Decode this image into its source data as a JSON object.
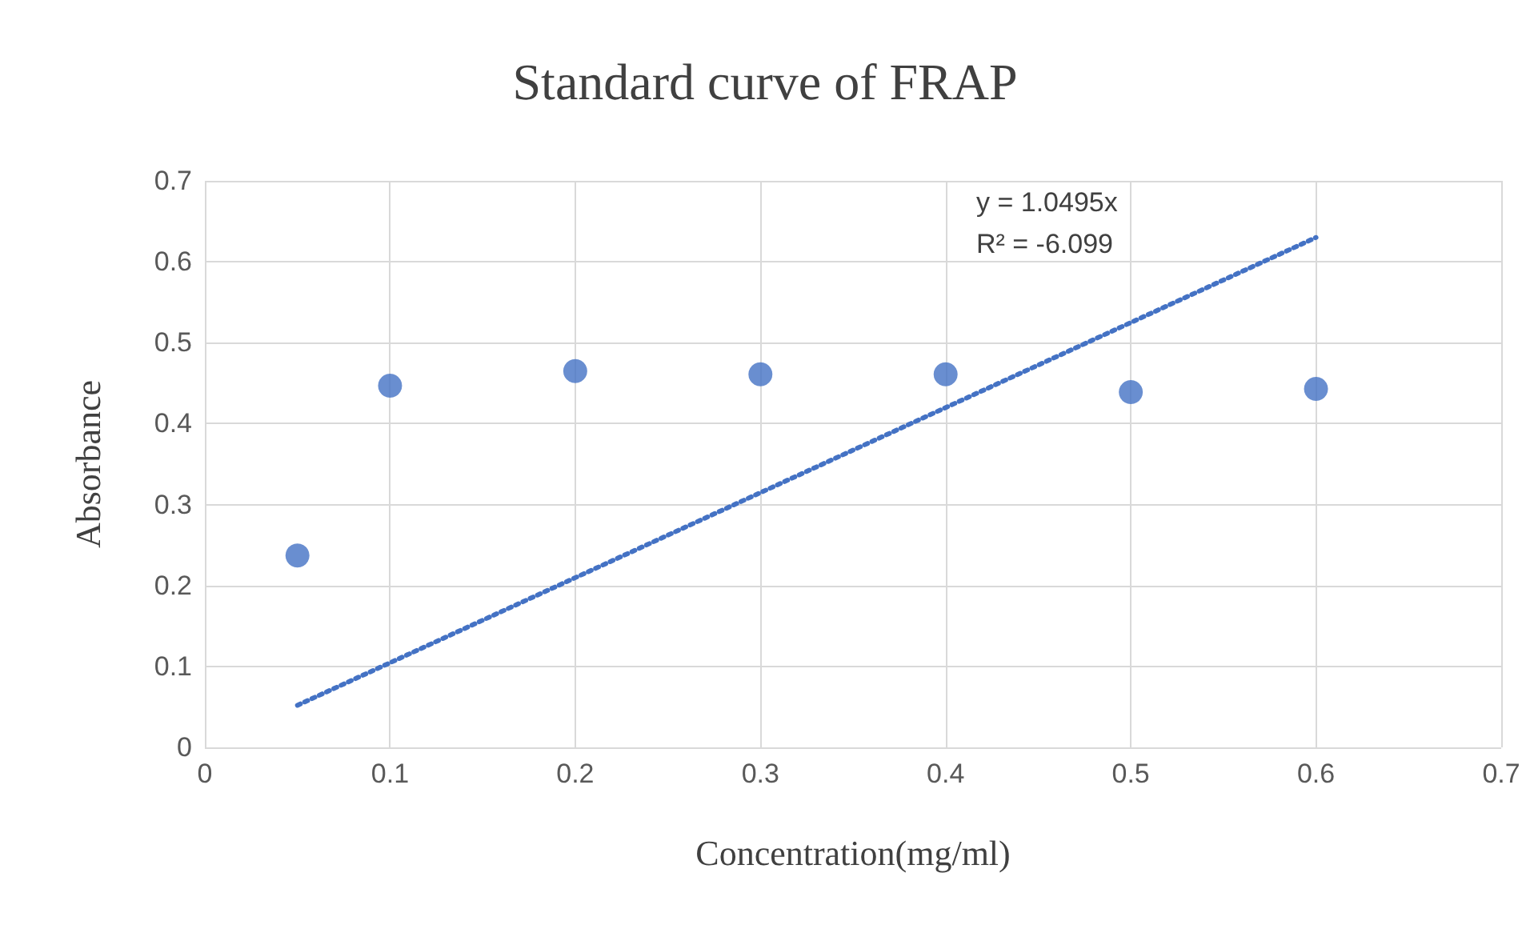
{
  "chart_data": {
    "type": "scatter",
    "title": "Standard curve of FRAP",
    "xlabel": "Concentration(mg/ml)",
    "ylabel": "Absorbance",
    "annotations": [
      "y = 1.0495x",
      "R² = -6.099"
    ],
    "series": [
      {
        "color": "#4472c4",
        "x": [
          0.05,
          0.1,
          0.2,
          0.3,
          0.4,
          0.5,
          0.6
        ],
        "values": [
          0.237,
          0.447,
          0.465,
          0.461,
          0.461,
          0.439,
          0.443
        ]
      },
      {
        "type": "line",
        "color": "#4472c4",
        "marker": "none",
        "line_style": "dotted",
        "x": [
          0.05,
          0.6
        ],
        "values": [
          0.052,
          0.63
        ]
      }
    ],
    "xlim": [
      0,
      0.7
    ],
    "xticks": [
      0,
      0.1,
      0.2,
      0.3,
      0.4,
      0.5,
      0.6,
      0.7
    ],
    "ylim": [
      0,
      0.7
    ],
    "yticks": [
      0,
      0.1,
      0.2,
      0.3,
      0.4,
      0.5,
      0.6,
      0.7
    ],
    "grid": true,
    "marker": "circle"
  }
}
